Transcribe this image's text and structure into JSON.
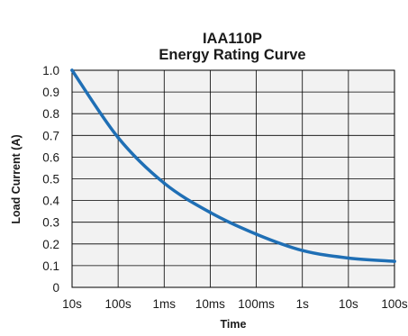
{
  "chart_data": {
    "type": "line",
    "title": "IAA110P",
    "subtitle": "Energy Rating Curve",
    "xlabel": "Time",
    "ylabel": "Load Current (A)",
    "x_scale": "log",
    "x_tick_labels": [
      "10s",
      "100s",
      "1ms",
      "10ms",
      "100ms",
      "1s",
      "10s",
      "100s"
    ],
    "y_tick_labels": [
      "0",
      "0.1",
      "0.2",
      "0.3",
      "0.4",
      "0.5",
      "0.6",
      "0.7",
      "0.8",
      "0.9",
      "1.0"
    ],
    "ylim": [
      0,
      1.0
    ],
    "grid": true,
    "legend": "none",
    "series": [
      {
        "x": [
          "10s",
          "100s",
          "1ms",
          "10ms",
          "100ms",
          "1s",
          "10s",
          "100s"
        ],
        "values": [
          1.0,
          0.69,
          0.48,
          0.345,
          0.245,
          0.17,
          0.135,
          0.12
        ]
      }
    ],
    "colors": {
      "line": "#1f6fb5",
      "plot_bg": "#f2f2f2",
      "grid": "#000000"
    }
  }
}
